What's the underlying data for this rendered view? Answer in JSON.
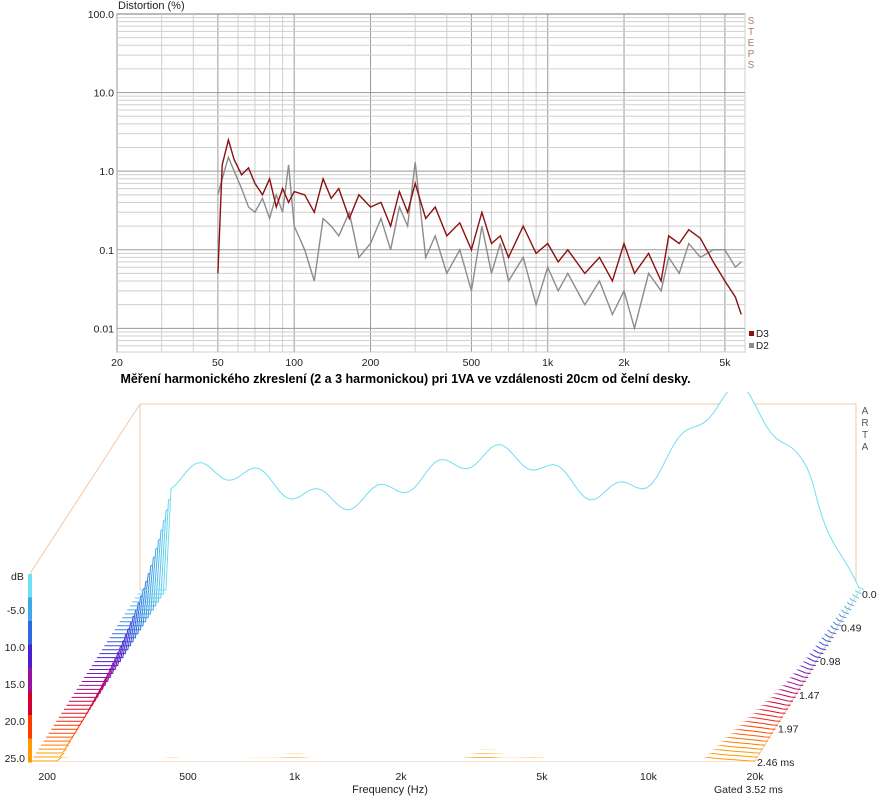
{
  "top_chart": {
    "ylabel": "Distortion (%)",
    "brand": "STEPS",
    "y_ticks": [
      "100.0",
      "10.0",
      "1.0",
      "0.1",
      "0.01"
    ],
    "x_ticks": [
      "20",
      "50",
      "100",
      "200",
      "500",
      "1k",
      "2k",
      "5k"
    ],
    "colors": {
      "D3": "#8b1010",
      "D2": "#8c8c8c",
      "grid_major": "#9a9a9a",
      "grid_minor": "#cfcfcf"
    }
  },
  "caption": "Měření harmonického zkreslení (2 a 3 harmonickou) pri 1VA ve vzdálenosti 20cm od čelní desky.",
  "waterfall": {
    "brand": "ARTA",
    "db_label": "dB",
    "db_ticks": [
      "-5.0",
      "10.0",
      "15.0",
      "20.0",
      "25.0"
    ],
    "x_ticks": [
      "200",
      "500",
      "1k",
      "2k",
      "5k",
      "10k",
      "20k"
    ],
    "xlabel": "Frequency (Hz)",
    "time_ticks": [
      "0.0",
      "0.49",
      "0.98",
      "1.47",
      "1.97",
      "2.46 ms"
    ],
    "gated": "Gated 3.52 ms",
    "colors": {
      "box": "#f0c8a8",
      "scale": [
        "#ff9a00",
        "#ff3c00",
        "#d10030",
        "#9a10a0",
        "#4a1fd0",
        "#2d6ae0",
        "#41a8e8",
        "#6ee0f0"
      ]
    }
  },
  "chart_data": [
    {
      "type": "line",
      "title": "",
      "xlabel": "",
      "ylabel": "Distortion (%)",
      "xscale": "log",
      "yscale": "log",
      "xlim": [
        20,
        6000
      ],
      "ylim": [
        0.005,
        100
      ],
      "legend": "bottom-right",
      "grid": true,
      "series": [
        {
          "name": "D3",
          "x": [
            50,
            52,
            55,
            58,
            62,
            66,
            70,
            75,
            80,
            85,
            90,
            95,
            100,
            110,
            120,
            130,
            140,
            150,
            165,
            180,
            200,
            220,
            240,
            260,
            280,
            300,
            330,
            360,
            400,
            450,
            500,
            550,
            600,
            650,
            700,
            800,
            900,
            1000,
            1100,
            1200,
            1400,
            1600,
            1800,
            2000,
            2200,
            2500,
            2800,
            3000,
            3300,
            3600,
            4000,
            4500,
            5000,
            5500,
            5800
          ],
          "y": [
            0.05,
            1.2,
            2.5,
            1.4,
            0.9,
            1.1,
            0.7,
            0.5,
            0.8,
            0.35,
            0.6,
            0.4,
            0.55,
            0.5,
            0.3,
            0.8,
            0.45,
            0.6,
            0.25,
            0.5,
            0.35,
            0.4,
            0.2,
            0.55,
            0.3,
            0.7,
            0.25,
            0.35,
            0.15,
            0.22,
            0.1,
            0.3,
            0.12,
            0.15,
            0.08,
            0.2,
            0.09,
            0.12,
            0.07,
            0.1,
            0.05,
            0.08,
            0.04,
            0.12,
            0.05,
            0.09,
            0.04,
            0.15,
            0.12,
            0.18,
            0.14,
            0.07,
            0.04,
            0.025,
            0.015
          ]
        },
        {
          "name": "D2",
          "x": [
            50,
            52,
            55,
            58,
            62,
            66,
            70,
            75,
            80,
            85,
            90,
            95,
            100,
            110,
            120,
            130,
            140,
            150,
            165,
            180,
            200,
            220,
            240,
            260,
            280,
            300,
            330,
            360,
            400,
            450,
            500,
            550,
            600,
            650,
            700,
            800,
            900,
            1000,
            1100,
            1200,
            1400,
            1600,
            1800,
            2000,
            2200,
            2500,
            2800,
            3000,
            3300,
            3600,
            4000,
            4500,
            5000,
            5500,
            5800
          ],
          "y": [
            0.5,
            0.8,
            1.5,
            1.0,
            0.6,
            0.35,
            0.3,
            0.45,
            0.25,
            0.5,
            0.3,
            1.2,
            0.2,
            0.1,
            0.04,
            0.25,
            0.2,
            0.15,
            0.3,
            0.08,
            0.12,
            0.25,
            0.1,
            0.35,
            0.2,
            1.3,
            0.08,
            0.15,
            0.05,
            0.1,
            0.03,
            0.2,
            0.05,
            0.12,
            0.04,
            0.08,
            0.02,
            0.06,
            0.03,
            0.05,
            0.02,
            0.04,
            0.015,
            0.03,
            0.01,
            0.05,
            0.03,
            0.08,
            0.05,
            0.12,
            0.08,
            0.1,
            0.1,
            0.06,
            0.07
          ]
        }
      ]
    },
    {
      "type": "area",
      "title": "",
      "xlabel": "Frequency (Hz)",
      "ylabel": "dB",
      "xscale": "log",
      "xlim": [
        180,
        20000
      ],
      "ylim": [
        -25,
        0
      ],
      "time_ms": [
        0.0,
        0.49,
        0.98,
        1.47,
        1.97,
        2.46
      ],
      "peaks_front": [
        {
          "freq": 1000,
          "db": -8
        },
        {
          "freq": 2000,
          "db": -10
        },
        {
          "freq": 10000,
          "db": -2
        }
      ]
    }
  ]
}
